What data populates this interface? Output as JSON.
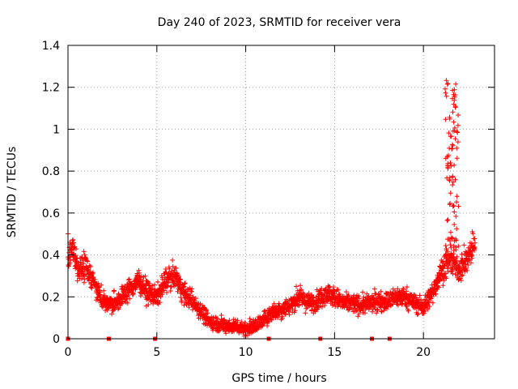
{
  "chart_data": {
    "type": "scatter",
    "title": "Day 240 of 2023, SRMTID for receiver vera",
    "xlabel": "GPS time / hours",
    "ylabel": "SRMTID / TECUs",
    "xlim": [
      0,
      24
    ],
    "ylim": [
      0,
      1.4
    ],
    "xticks": [
      0,
      5,
      10,
      15,
      20
    ],
    "xtick_labels": [
      "0",
      "5",
      "10",
      "15",
      "20"
    ],
    "yticks": [
      0,
      0.2,
      0.4,
      0.6,
      0.8,
      1.0,
      1.2,
      1.4
    ],
    "ytick_labels": [
      "0",
      "0.2",
      "0.4",
      "0.6",
      "0.8",
      "1",
      "1.2",
      "1.4"
    ],
    "grid": true,
    "marker": "plus",
    "color": "#ff0000",
    "series": [
      {
        "name": "SRMTID",
        "trend": [
          [
            0.0,
            0.38
          ],
          [
            0.3,
            0.42
          ],
          [
            0.6,
            0.33
          ],
          [
            1.0,
            0.35
          ],
          [
            1.5,
            0.26
          ],
          [
            2.0,
            0.18
          ],
          [
            2.5,
            0.16
          ],
          [
            3.0,
            0.2
          ],
          [
            3.5,
            0.24
          ],
          [
            4.0,
            0.28
          ],
          [
            4.5,
            0.22
          ],
          [
            5.0,
            0.2
          ],
          [
            5.5,
            0.28
          ],
          [
            6.0,
            0.3
          ],
          [
            6.5,
            0.22
          ],
          [
            7.0,
            0.18
          ],
          [
            7.5,
            0.13
          ],
          [
            8.0,
            0.08
          ],
          [
            8.5,
            0.07
          ],
          [
            9.0,
            0.06
          ],
          [
            9.5,
            0.06
          ],
          [
            10.0,
            0.05
          ],
          [
            10.5,
            0.06
          ],
          [
            11.0,
            0.09
          ],
          [
            11.5,
            0.13
          ],
          [
            12.0,
            0.14
          ],
          [
            12.5,
            0.16
          ],
          [
            13.0,
            0.2
          ],
          [
            13.5,
            0.17
          ],
          [
            14.0,
            0.18
          ],
          [
            14.5,
            0.22
          ],
          [
            15.0,
            0.2
          ],
          [
            15.5,
            0.17
          ],
          [
            16.0,
            0.17
          ],
          [
            16.5,
            0.16
          ],
          [
            17.0,
            0.17
          ],
          [
            17.5,
            0.18
          ],
          [
            18.0,
            0.18
          ],
          [
            18.5,
            0.2
          ],
          [
            19.0,
            0.2
          ],
          [
            19.5,
            0.17
          ],
          [
            20.0,
            0.15
          ],
          [
            20.5,
            0.22
          ],
          [
            21.0,
            0.32
          ],
          [
            21.5,
            0.38
          ],
          [
            22.0,
            0.33
          ],
          [
            22.5,
            0.38
          ],
          [
            22.8,
            0.45
          ]
        ],
        "x_end": 22.9,
        "n_points": 2300,
        "spread": 0.06,
        "spike": {
          "x_range": [
            21.2,
            22.0
          ],
          "values_range": [
            0.4,
            1.25
          ],
          "n_points": 90
        },
        "gap_markers_x": [
          0.0,
          2.3,
          4.9,
          11.3,
          14.2,
          17.1,
          18.1
        ]
      }
    ]
  }
}
